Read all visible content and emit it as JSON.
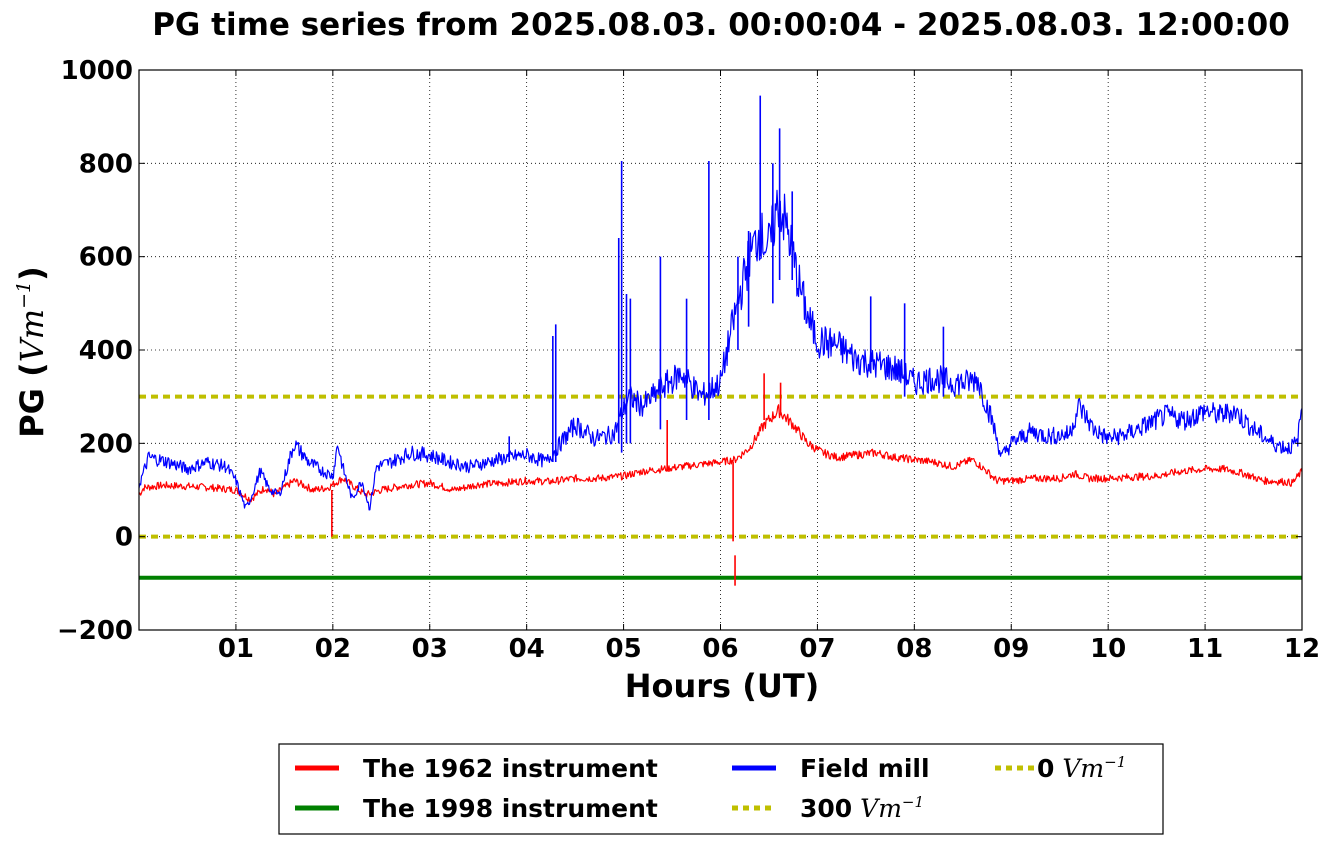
{
  "chart_data": {
    "type": "line",
    "title": "PG time series from 2025.08.03. 00:00:04 - 2025.08.03. 12:00:00",
    "xlabel": "Hours (UT)",
    "ylabel": {
      "prefix": "PG (",
      "unit": "Vm",
      "exp": "−1",
      "suffix": ")"
    },
    "xlim": [
      0,
      12
    ],
    "ylim": [
      -200,
      1000
    ],
    "grid": true,
    "x_ticks": [
      {
        "value": 1,
        "label": "01"
      },
      {
        "value": 2,
        "label": "02"
      },
      {
        "value": 3,
        "label": "03"
      },
      {
        "value": 4,
        "label": "04"
      },
      {
        "value": 5,
        "label": "05"
      },
      {
        "value": 6,
        "label": "06"
      },
      {
        "value": 7,
        "label": "07"
      },
      {
        "value": 8,
        "label": "08"
      },
      {
        "value": 9,
        "label": "09"
      },
      {
        "value": 10,
        "label": "10"
      },
      {
        "value": 11,
        "label": "11"
      },
      {
        "value": 12,
        "label": "12"
      }
    ],
    "y_ticks": [
      {
        "value": -200,
        "label": "−200"
      },
      {
        "value": 0,
        "label": "0"
      },
      {
        "value": 200,
        "label": "200"
      },
      {
        "value": 400,
        "label": "400"
      },
      {
        "value": 600,
        "label": "600"
      },
      {
        "value": 800,
        "label": "800"
      },
      {
        "value": 1000,
        "label": "1000"
      }
    ],
    "legend_position": "bottom-center, below plot",
    "series": [
      {
        "name": "The 1962 instrument",
        "color": "#ff0000",
        "x": [
          0,
          0.05,
          0.25,
          0.5,
          0.75,
          1.0,
          1.15,
          1.3,
          1.4,
          1.6,
          1.8,
          1.95,
          2.1,
          2.3,
          2.35,
          2.5,
          2.75,
          3.0,
          3.25,
          3.5,
          3.75,
          4.0,
          4.25,
          4.5,
          4.75,
          5.0,
          5.2,
          5.4,
          5.6,
          5.8,
          6.0,
          6.15,
          6.3,
          6.45,
          6.6,
          6.75,
          6.9,
          7.05,
          7.2,
          7.4,
          7.6,
          7.8,
          8.0,
          8.2,
          8.4,
          8.6,
          8.75,
          8.85,
          9.0,
          9.25,
          9.5,
          9.65,
          9.8,
          10.0,
          10.25,
          10.5,
          10.75,
          11.0,
          11.2,
          11.4,
          11.6,
          11.8,
          11.9,
          12.0
        ],
        "values": [
          90,
          105,
          110,
          108,
          105,
          100,
          80,
          105,
          90,
          120,
          100,
          105,
          125,
          95,
          90,
          100,
          110,
          115,
          100,
          112,
          115,
          120,
          118,
          125,
          125,
          130,
          140,
          145,
          150,
          155,
          160,
          165,
          190,
          240,
          270,
          240,
          200,
          180,
          170,
          175,
          180,
          170,
          165,
          160,
          150,
          165,
          140,
          120,
          120,
          125,
          125,
          135,
          125,
          125,
          128,
          130,
          140,
          145,
          145,
          135,
          120,
          118,
          115,
          140
        ],
        "spikes": [
          {
            "x": 1.99,
            "from": 100,
            "to": 0
          },
          {
            "x": 5.45,
            "from": 140,
            "to": 250
          },
          {
            "x": 6.13,
            "from": 160,
            "to": -10
          },
          {
            "x": 6.15,
            "from": -40,
            "to": -105
          },
          {
            "x": 6.45,
            "from": 250,
            "to": 350
          },
          {
            "x": 6.62,
            "from": 260,
            "to": 330
          }
        ]
      },
      {
        "name": "The 1998 instrument",
        "color": "#008000",
        "x": [
          0,
          12
        ],
        "values": [
          -88,
          -88
        ]
      },
      {
        "name": "Field mill",
        "color": "#0000ff",
        "x": [
          0,
          0.1,
          0.3,
          0.5,
          0.7,
          0.9,
          1.0,
          1.1,
          1.15,
          1.25,
          1.35,
          1.45,
          1.6,
          1.75,
          1.9,
          2.0,
          2.05,
          2.1,
          2.2,
          2.3,
          2.38,
          2.45,
          2.6,
          2.8,
          3.0,
          3.2,
          3.4,
          3.6,
          3.8,
          4.0,
          4.2,
          4.35,
          4.5,
          4.7,
          4.9,
          5.05,
          5.2,
          5.4,
          5.6,
          5.8,
          6.0,
          6.1,
          6.2,
          6.3,
          6.4,
          6.5,
          6.6,
          6.7,
          6.8,
          6.9,
          7.0,
          7.2,
          7.4,
          7.6,
          7.8,
          8.0,
          8.2,
          8.4,
          8.55,
          8.65,
          8.8,
          8.9,
          9.0,
          9.2,
          9.4,
          9.6,
          9.7,
          9.85,
          10.0,
          10.2,
          10.4,
          10.6,
          10.8,
          11.0,
          11.15,
          11.3,
          11.5,
          11.7,
          11.85,
          11.95,
          12.0
        ],
        "values": [
          110,
          170,
          160,
          145,
          160,
          150,
          120,
          60,
          80,
          140,
          100,
          90,
          200,
          160,
          140,
          130,
          200,
          150,
          80,
          120,
          60,
          150,
          160,
          180,
          175,
          160,
          150,
          160,
          170,
          175,
          160,
          200,
          240,
          210,
          220,
          300,
          280,
          320,
          350,
          300,
          330,
          430,
          520,
          600,
          650,
          620,
          720,
          650,
          550,
          470,
          420,
          410,
          380,
          370,
          360,
          330,
          340,
          330,
          330,
          340,
          250,
          170,
          200,
          225,
          215,
          220,
          280,
          230,
          210,
          220,
          240,
          260,
          250,
          270,
          260,
          270,
          230,
          200,
          190,
          200,
          280
        ],
        "spikes": [
          {
            "x": 3.82,
            "from": 160,
            "to": 215
          },
          {
            "x": 4.27,
            "from": 160,
            "to": 430
          },
          {
            "x": 4.3,
            "from": 160,
            "to": 455
          },
          {
            "x": 4.95,
            "from": 200,
            "to": 640
          },
          {
            "x": 4.98,
            "from": 180,
            "to": 805
          },
          {
            "x": 5.03,
            "from": 200,
            "to": 520
          },
          {
            "x": 5.07,
            "from": 200,
            "to": 510
          },
          {
            "x": 5.38,
            "from": 230,
            "to": 600
          },
          {
            "x": 5.65,
            "from": 250,
            "to": 510
          },
          {
            "x": 5.88,
            "from": 250,
            "to": 805
          },
          {
            "x": 6.18,
            "from": 400,
            "to": 600
          },
          {
            "x": 6.29,
            "from": 450,
            "to": 655
          },
          {
            "x": 6.41,
            "from": 600,
            "to": 945
          },
          {
            "x": 6.54,
            "from": 500,
            "to": 800
          },
          {
            "x": 6.61,
            "from": 550,
            "to": 875
          },
          {
            "x": 6.74,
            "from": 550,
            "to": 740
          },
          {
            "x": 7.55,
            "from": 350,
            "to": 515
          },
          {
            "x": 7.9,
            "from": 300,
            "to": 500
          },
          {
            "x": 8.3,
            "from": 300,
            "to": 450
          }
        ]
      },
      {
        "name": "300",
        "color": "#bfbf00",
        "dashed": true,
        "x": [
          0,
          12
        ],
        "values": [
          300,
          300
        ]
      },
      {
        "name": "0",
        "color": "#bfbf00",
        "dashed": true,
        "x": [
          0,
          12
        ],
        "values": [
          0,
          0
        ]
      }
    ],
    "legend": [
      {
        "label": "The 1962 instrument",
        "color": "#ff0000",
        "dashed": false,
        "unit": false
      },
      {
        "label": "The 1998 instrument",
        "color": "#008000",
        "dashed": false,
        "unit": false
      },
      {
        "label": "Field mill",
        "color": "#0000ff",
        "dashed": false,
        "unit": false
      },
      {
        "label": "300",
        "color": "#bfbf00",
        "dashed": true,
        "unit": true
      },
      {
        "label": "0",
        "color": "#bfbf00",
        "dashed": true,
        "unit": true
      }
    ],
    "legend_unit": {
      "unit": "Vm",
      "exp": "−1"
    }
  }
}
